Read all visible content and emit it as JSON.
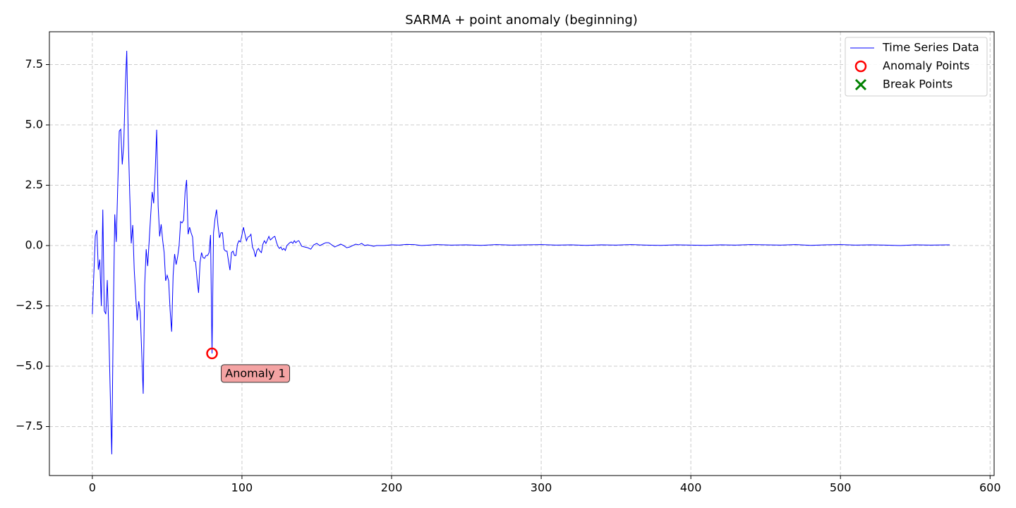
{
  "chart_data": {
    "type": "line",
    "title": "SARMA + point anomaly (beginning)",
    "xlim": [
      -28.7,
      602.7
    ],
    "ylim": [
      -9.53,
      8.86
    ],
    "xticks": [
      0,
      100,
      200,
      300,
      400,
      500,
      600
    ],
    "yticks": [
      {
        "value": -7.5,
        "label": "−7.5"
      },
      {
        "value": -5,
        "label": "−5.0"
      },
      {
        "value": -2.5,
        "label": "−2.5"
      },
      {
        "value": 0,
        "label": "0.0"
      },
      2.5,
      {
        "value": 5,
        "label": "5.0"
      },
      7.5
    ],
    "grid": true,
    "legend": "upper right",
    "series": [
      {
        "name": "Time Series Data",
        "color": "#0000ff",
        "marker": "none",
        "x": [
          0,
          1,
          2,
          3,
          4,
          5,
          6,
          7,
          8,
          9,
          10,
          11,
          12,
          13,
          14,
          15,
          16,
          17,
          18,
          19,
          20,
          21,
          22,
          23,
          24,
          25,
          26,
          27,
          28,
          29,
          30,
          31,
          32,
          33,
          34,
          35,
          36,
          37,
          38,
          39,
          40,
          41,
          42,
          43,
          44,
          45,
          46,
          47,
          48,
          49,
          50,
          51,
          52,
          53,
          54,
          55,
          56,
          57,
          58,
          59,
          60,
          61,
          62,
          63,
          64,
          65,
          66,
          67,
          68,
          69,
          70,
          71,
          72,
          73,
          74,
          75,
          76,
          77,
          78,
          79,
          80,
          81,
          82,
          83,
          84,
          85,
          86,
          87,
          88,
          89,
          90,
          91,
          92,
          93,
          94,
          95,
          96,
          97,
          98,
          99,
          100,
          101,
          102,
          103,
          104,
          105,
          106,
          107,
          108,
          109,
          110,
          111,
          112,
          113,
          114,
          115,
          116,
          117,
          118,
          119,
          120,
          121,
          122,
          123,
          124,
          125,
          126,
          127,
          128,
          129,
          130,
          131,
          132,
          133,
          134,
          135,
          136,
          137,
          138,
          140,
          142,
          144,
          146,
          148,
          150,
          152,
          154,
          156,
          158,
          160,
          162,
          164,
          166,
          168,
          170,
          172,
          174,
          176,
          178,
          180,
          182,
          184,
          186,
          188,
          190,
          195,
          200,
          205,
          210,
          215,
          220,
          225,
          230,
          240,
          250,
          260,
          270,
          280,
          290,
          300,
          310,
          320,
          330,
          340,
          350,
          360,
          370,
          380,
          390,
          400,
          410,
          420,
          430,
          440,
          450,
          460,
          470,
          480,
          490,
          500,
          510,
          520,
          530,
          540,
          550,
          560,
          573
        ],
        "values": [
          -2.84,
          -1.2,
          0.4,
          0.64,
          -1.0,
          -0.58,
          -2.5,
          1.49,
          -2.7,
          -2.84,
          -1.43,
          -3.5,
          -6.2,
          -8.65,
          -3.0,
          1.29,
          0.15,
          2.5,
          4.74,
          4.82,
          3.36,
          4.18,
          6.5,
          8.07,
          4.5,
          2.13,
          0.09,
          0.85,
          -1.0,
          -2.1,
          -3.1,
          -2.31,
          -2.75,
          -4.44,
          -6.14,
          -1.64,
          -0.15,
          -0.85,
          0.2,
          1.26,
          2.22,
          1.75,
          3.01,
          4.8,
          1.64,
          0.38,
          0.88,
          0.23,
          -0.29,
          -1.46,
          -1.23,
          -1.46,
          -2.69,
          -3.57,
          -1.23,
          -0.35,
          -0.79,
          -0.47,
          0.0,
          0.99,
          0.94,
          1.05,
          2.22,
          2.72,
          0.47,
          0.76,
          0.53,
          0.35,
          -0.64,
          -0.67,
          -1.4,
          -1.96,
          -0.7,
          -0.29,
          -0.5,
          -0.53,
          -0.41,
          -0.41,
          -0.3,
          0.44,
          -4.47,
          0.53,
          1.11,
          1.49,
          0.82,
          0.32,
          0.53,
          0.53,
          -0.15,
          -0.23,
          -0.23,
          -0.64,
          -1.02,
          -0.29,
          -0.23,
          -0.41,
          -0.41,
          0.06,
          0.2,
          0.15,
          0.44,
          0.76,
          0.47,
          0.2,
          0.35,
          0.38,
          0.47,
          -0.06,
          -0.2,
          -0.47,
          -0.2,
          -0.12,
          -0.23,
          -0.29,
          0.06,
          0.2,
          0.09,
          0.23,
          0.38,
          0.23,
          0.29,
          0.35,
          0.38,
          0.15,
          -0.03,
          -0.12,
          -0.06,
          -0.18,
          -0.12,
          -0.2,
          0.0,
          0.06,
          0.12,
          0.15,
          0.09,
          0.2,
          0.12,
          0.18,
          0.2,
          -0.03,
          -0.06,
          -0.09,
          -0.15,
          0.03,
          0.09,
          0.0,
          0.06,
          0.12,
          0.12,
          0.03,
          -0.06,
          0.0,
          0.06,
          0.0,
          -0.09,
          -0.06,
          0.0,
          0.06,
          0.03,
          0.09,
          0.0,
          0.03,
          0.0,
          -0.03,
          0.0,
          0.0,
          0.03,
          0.02,
          0.05,
          0.04,
          0.0,
          0.02,
          0.04,
          0.02,
          0.03,
          0.01,
          0.04,
          0.02,
          0.03,
          0.04,
          0.02,
          0.03,
          0.01,
          0.03,
          0.02,
          0.04,
          0.02,
          0.01,
          0.03,
          0.02,
          0.01,
          0.03,
          0.02,
          0.04,
          0.03,
          0.02,
          0.04,
          0.01,
          0.03,
          0.04,
          0.02,
          0.03,
          0.02,
          0.0,
          0.03,
          0.02,
          0.03
        ]
      },
      {
        "name": "Anomaly Points",
        "color": "#ff0000",
        "marker": "o",
        "x": [
          80
        ],
        "values": [
          -4.47
        ],
        "labels": [
          "Anomaly 1"
        ]
      },
      {
        "name": "Break Points",
        "color": "#008000",
        "marker": "x",
        "x": [],
        "values": []
      }
    ]
  }
}
